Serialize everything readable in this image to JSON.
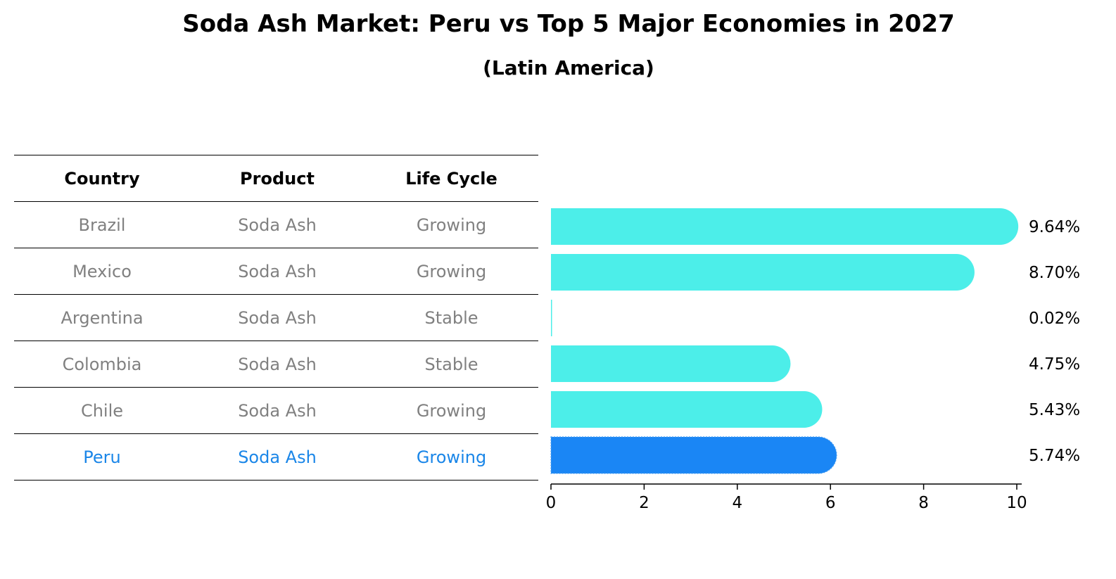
{
  "chart_data": {
    "type": "bar",
    "orientation": "horizontal",
    "title": "Soda Ash Market: Peru vs Top 5 Major Economies in 2027",
    "subtitle": "(Latin America)",
    "columns": [
      "Country",
      "Product",
      "Life Cycle"
    ],
    "rows": [
      {
        "country": "Brazil",
        "product": "Soda Ash",
        "life_cycle": "Growing",
        "value": 9.64,
        "label": "9.64%",
        "highlight": false
      },
      {
        "country": "Mexico",
        "product": "Soda Ash",
        "life_cycle": "Growing",
        "value": 8.7,
        "label": "8.70%",
        "highlight": false
      },
      {
        "country": "Argentina",
        "product": "Soda Ash",
        "life_cycle": "Stable",
        "value": 0.02,
        "label": "0.02%",
        "highlight": false
      },
      {
        "country": "Colombia",
        "product": "Soda Ash",
        "life_cycle": "Stable",
        "value": 4.75,
        "label": "4.75%",
        "highlight": false
      },
      {
        "country": "Chile",
        "product": "Soda Ash",
        "life_cycle": "Growing",
        "value": 5.43,
        "label": "5.43%",
        "highlight": false
      },
      {
        "country": "Peru",
        "product": "Soda Ash",
        "life_cycle": "Growing",
        "value": 5.74,
        "label": "5.74%",
        "highlight": true
      }
    ],
    "xlim": [
      0,
      10
    ],
    "xticks": [
      0,
      2,
      4,
      6,
      8,
      10
    ],
    "xtick_labels": [
      "0",
      "2",
      "4",
      "6",
      "8",
      "10"
    ],
    "xlabel": "",
    "ylabel": "",
    "grid": false,
    "colors": {
      "default_bar": "#4ceee9",
      "highlight_bar": "#1a86f5",
      "default_text": "#808080",
      "highlight_text": "#1a86e8"
    }
  }
}
